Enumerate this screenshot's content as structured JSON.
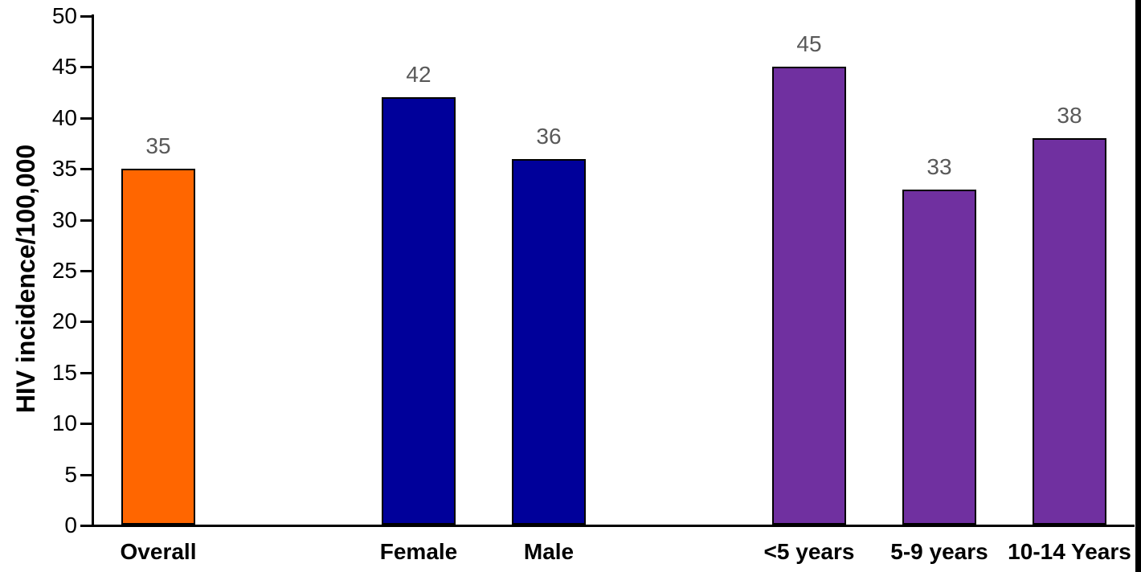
{
  "page": {
    "background_color": "#FFFFFF",
    "right_edge_strip_color": "#000000"
  },
  "chart_data": {
    "type": "bar",
    "ylabel": "HIV incidence/100,000",
    "xlabel": "",
    "ylim": [
      0,
      50
    ],
    "yticks": [
      0,
      5,
      10,
      15,
      20,
      25,
      30,
      35,
      40,
      45,
      50
    ],
    "grid": false,
    "legend": "none",
    "data_labels_visible": true,
    "categories": [
      "Overall",
      "Female",
      "Male",
      "<5 years",
      "5-9 years",
      "10-14 Years"
    ],
    "values": [
      35,
      42,
      36,
      45,
      33,
      38
    ],
    "bars": [
      {
        "label": "Overall",
        "value": 35,
        "color": "#FF6600",
        "group": "overall"
      },
      {
        "label": "Female",
        "value": 42,
        "color": "#00009A",
        "group": "sex"
      },
      {
        "label": "Male",
        "value": 36,
        "color": "#00009A",
        "group": "sex"
      },
      {
        "label": "<5 years",
        "value": 45,
        "color": "#7030A0",
        "group": "age"
      },
      {
        "label": "5-9 years",
        "value": 33,
        "color": "#7030A0",
        "group": "age"
      },
      {
        "label": "10-14 Years",
        "value": 38,
        "color": "#7030A0",
        "group": "age"
      }
    ],
    "colors": {
      "overall_bar": "#FF6600",
      "sex_bars": "#00009A",
      "age_bars": "#7030A0",
      "bar_border": "#000000",
      "axis": "#000000",
      "tick_label": "#000000",
      "data_label": "#595959",
      "category_label": "#000000"
    }
  }
}
